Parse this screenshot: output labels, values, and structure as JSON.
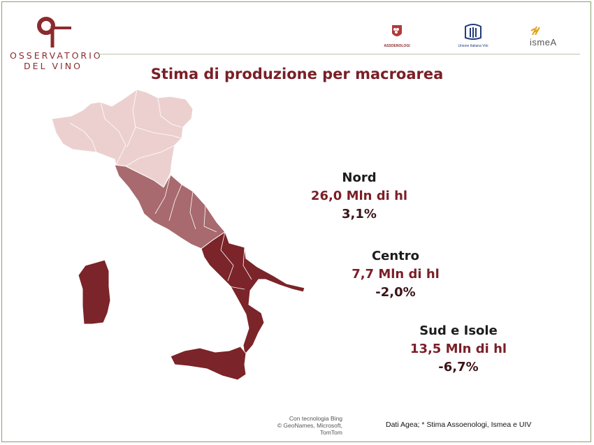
{
  "brand": {
    "logo_line1": "OSSERVATORIO",
    "logo_line2": "DEL VINO",
    "color": "#8b2b2e"
  },
  "partners": [
    {
      "name": "ASSOENOLOGI",
      "icon": "assoenologi-logo"
    },
    {
      "name": "Unione Italiana Vini",
      "icon": "uiv-logo"
    },
    {
      "name": "ismeA",
      "icon": "ismea-logo"
    }
  ],
  "title": "Stima di produzione per macroarea",
  "map_colors": {
    "nord": "#ecd0d0",
    "centro": "#a86a6e",
    "sud_isole": "#7b2429"
  },
  "areas": [
    {
      "name": "Nord",
      "production": "26,0 Mln di hl",
      "variation": "3,1%"
    },
    {
      "name": "Centro",
      "production": "7,7 Mln di hl",
      "variation": "-2,0%"
    },
    {
      "name": "Sud e Isole",
      "production": "13,5 Mln di hl",
      "variation": "-6,7%"
    }
  ],
  "map_credit": {
    "line1": "Con tecnologia Bing",
    "line2": "© GeoNames, Microsoft, TomTom"
  },
  "source_note": "Dati Agea; * Stima Assoenologi, Ismea e UIV"
}
